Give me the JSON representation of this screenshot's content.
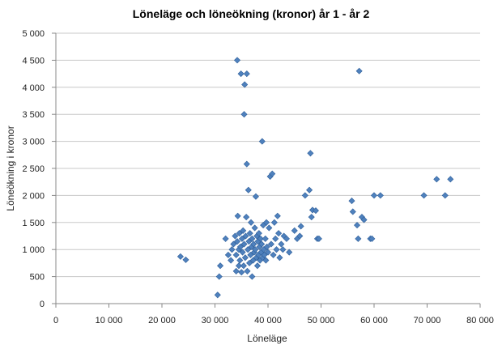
{
  "chart_data": {
    "type": "scatter",
    "title": "Löneläge och löneökning (kronor) år 1 - år 2",
    "xlabel": "Löneläge",
    "ylabel": "Löneökning i kronor",
    "xlim": [
      0,
      80000
    ],
    "ylim": [
      0,
      5000
    ],
    "x_ticks": [
      0,
      10000,
      20000,
      30000,
      40000,
      50000,
      60000,
      70000,
      80000
    ],
    "x_tick_labels": [
      "0",
      "10 000",
      "20 000",
      "30 000",
      "40 000",
      "50 000",
      "60 000",
      "70 000",
      "80 000"
    ],
    "y_ticks": [
      0,
      500,
      1000,
      1500,
      2000,
      2500,
      3000,
      3500,
      4000,
      4500,
      5000
    ],
    "y_tick_labels": [
      "0",
      "500",
      "1 000",
      "1 500",
      "2 000",
      "2 500",
      "3 000",
      "3 500",
      "4 000",
      "4 500",
      "5 000"
    ],
    "grid": true,
    "series": [
      {
        "name": "Löneökning",
        "marker": "diamond",
        "color": "#4f81bd",
        "points": [
          [
            23500,
            870
          ],
          [
            24500,
            810
          ],
          [
            30500,
            160
          ],
          [
            30800,
            500
          ],
          [
            31000,
            700
          ],
          [
            32000,
            1200
          ],
          [
            32500,
            900
          ],
          [
            33000,
            800
          ],
          [
            33200,
            1000
          ],
          [
            33500,
            1100
          ],
          [
            33800,
            1250
          ],
          [
            34000,
            600
          ],
          [
            34000,
            900
          ],
          [
            34200,
            1150
          ],
          [
            34300,
            1620
          ],
          [
            34500,
            700
          ],
          [
            34500,
            1000
          ],
          [
            34600,
            1300
          ],
          [
            34700,
            800
          ],
          [
            34800,
            1050
          ],
          [
            34900,
            4250
          ],
          [
            34200,
            4500
          ],
          [
            35000,
            580
          ],
          [
            35100,
            1200
          ],
          [
            35200,
            950
          ],
          [
            35300,
            1350
          ],
          [
            35400,
            700
          ],
          [
            35500,
            1100
          ],
          [
            35500,
            3500
          ],
          [
            35600,
            4050
          ],
          [
            35700,
            850
          ],
          [
            35800,
            1250
          ],
          [
            35900,
            1600
          ],
          [
            36000,
            2580
          ],
          [
            36000,
            4250
          ],
          [
            36100,
            600
          ],
          [
            36200,
            1000
          ],
          [
            36300,
            2100
          ],
          [
            36400,
            1150
          ],
          [
            36500,
            750
          ],
          [
            36600,
            1300
          ],
          [
            36700,
            900
          ],
          [
            36800,
            1500
          ],
          [
            36900,
            1050
          ],
          [
            37000,
            500
          ],
          [
            37000,
            1200
          ],
          [
            37200,
            800
          ],
          [
            37300,
            1100
          ],
          [
            37400,
            950
          ],
          [
            37500,
            1400
          ],
          [
            37600,
            1000
          ],
          [
            37700,
            1980
          ],
          [
            37800,
            850
          ],
          [
            37900,
            1250
          ],
          [
            38000,
            700
          ],
          [
            38100,
            1150
          ],
          [
            38200,
            900
          ],
          [
            38300,
            1300
          ],
          [
            38400,
            1050
          ],
          [
            38500,
            800
          ],
          [
            38600,
            1200
          ],
          [
            38700,
            950
          ],
          [
            38800,
            1100
          ],
          [
            38900,
            3000
          ],
          [
            39000,
            850
          ],
          [
            39100,
            1450
          ],
          [
            39200,
            1000
          ],
          [
            39300,
            900
          ],
          [
            39500,
            1200
          ],
          [
            39600,
            800
          ],
          [
            39700,
            1500
          ],
          [
            39800,
            1050
          ],
          [
            40000,
            950
          ],
          [
            40200,
            1400
          ],
          [
            40400,
            2350
          ],
          [
            40600,
            1100
          ],
          [
            40800,
            2400
          ],
          [
            41000,
            900
          ],
          [
            41200,
            1500
          ],
          [
            41400,
            1200
          ],
          [
            41600,
            1000
          ],
          [
            41800,
            1620
          ],
          [
            42000,
            1300
          ],
          [
            42200,
            850
          ],
          [
            42500,
            1100
          ],
          [
            42800,
            1000
          ],
          [
            43000,
            1250
          ],
          [
            43500,
            1200
          ],
          [
            44000,
            950
          ],
          [
            45000,
            1350
          ],
          [
            45500,
            1200
          ],
          [
            46000,
            1250
          ],
          [
            46200,
            1430
          ],
          [
            47000,
            2000
          ],
          [
            47800,
            2100
          ],
          [
            48000,
            2780
          ],
          [
            48200,
            1600
          ],
          [
            48400,
            1730
          ],
          [
            49000,
            1720
          ],
          [
            49300,
            1200
          ],
          [
            49600,
            1200
          ],
          [
            55800,
            1900
          ],
          [
            56000,
            1700
          ],
          [
            56800,
            1450
          ],
          [
            57000,
            1200
          ],
          [
            57200,
            4300
          ],
          [
            57700,
            1600
          ],
          [
            58100,
            1550
          ],
          [
            59300,
            1200
          ],
          [
            59600,
            1200
          ],
          [
            60000,
            2000
          ],
          [
            61200,
            2000
          ],
          [
            69400,
            2000
          ],
          [
            71800,
            2300
          ],
          [
            73400,
            2000
          ],
          [
            74400,
            2300
          ]
        ]
      }
    ]
  }
}
